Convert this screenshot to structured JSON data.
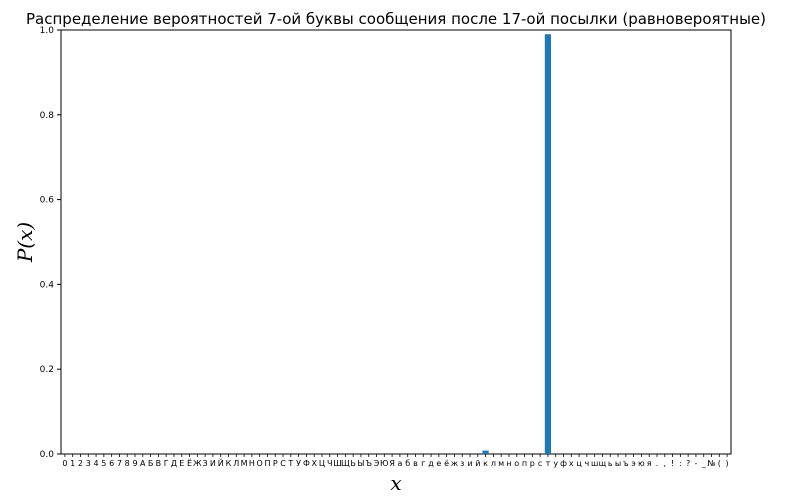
{
  "chart_data": {
    "type": "bar",
    "title": "Распределение вероятностей 7-ой буквы сообщения после 17-ой посылки (равновероятные)",
    "xlabel": "x",
    "ylabel": "P(x)",
    "ylim": [
      0,
      1.0
    ],
    "yticks": [
      "0.0",
      "0.2",
      "0.4",
      "0.6",
      "0.8",
      "1.0"
    ],
    "grid": false,
    "color": "#1f77b4",
    "categories": [
      "0",
      "1",
      "2",
      "3",
      "4",
      "5",
      "6",
      "7",
      "8",
      "9",
      "А",
      "Б",
      "В",
      "Г",
      "Д",
      "Е",
      "Ё",
      "Ж",
      "З",
      "И",
      "Й",
      "К",
      "Л",
      "М",
      "Н",
      "О",
      "П",
      "Р",
      "С",
      "Т",
      "У",
      "Ф",
      "Х",
      "Ц",
      "Ч",
      "Ш",
      "Щ",
      "Ь",
      "Ы",
      "Ъ",
      "Э",
      "Ю",
      "Я",
      "а",
      "б",
      "в",
      "г",
      "д",
      "е",
      "ё",
      "ж",
      "з",
      "и",
      "й",
      "к",
      "л",
      "м",
      "н",
      "о",
      "п",
      "р",
      "с",
      "т",
      "у",
      "ф",
      "х",
      "ц",
      "ч",
      "ш",
      "щ",
      "ь",
      "ы",
      "ъ",
      "э",
      "ю",
      "я",
      ".",
      ",",
      "!",
      ":",
      "?",
      "-",
      "_",
      "№",
      "(",
      ")"
    ],
    "values": [
      0,
      0,
      0,
      0,
      0,
      0,
      0,
      0,
      0,
      0,
      0,
      0,
      0,
      0,
      0,
      0,
      0,
      0,
      0,
      0,
      0,
      0,
      0,
      0,
      0,
      0,
      0,
      0,
      0,
      0,
      0,
      0,
      0,
      0,
      0,
      0,
      0,
      0,
      0,
      0,
      0,
      0,
      0,
      0,
      0,
      0,
      0,
      0,
      0,
      0,
      0,
      0,
      0,
      0,
      0.008,
      0,
      0,
      0,
      0,
      0,
      0,
      0,
      0.99,
      0,
      0,
      0,
      0,
      0,
      0,
      0,
      0,
      0,
      0,
      0,
      0,
      0,
      0,
      0,
      0,
      0,
      0,
      0,
      0,
      0,
      0,
      0
    ]
  }
}
